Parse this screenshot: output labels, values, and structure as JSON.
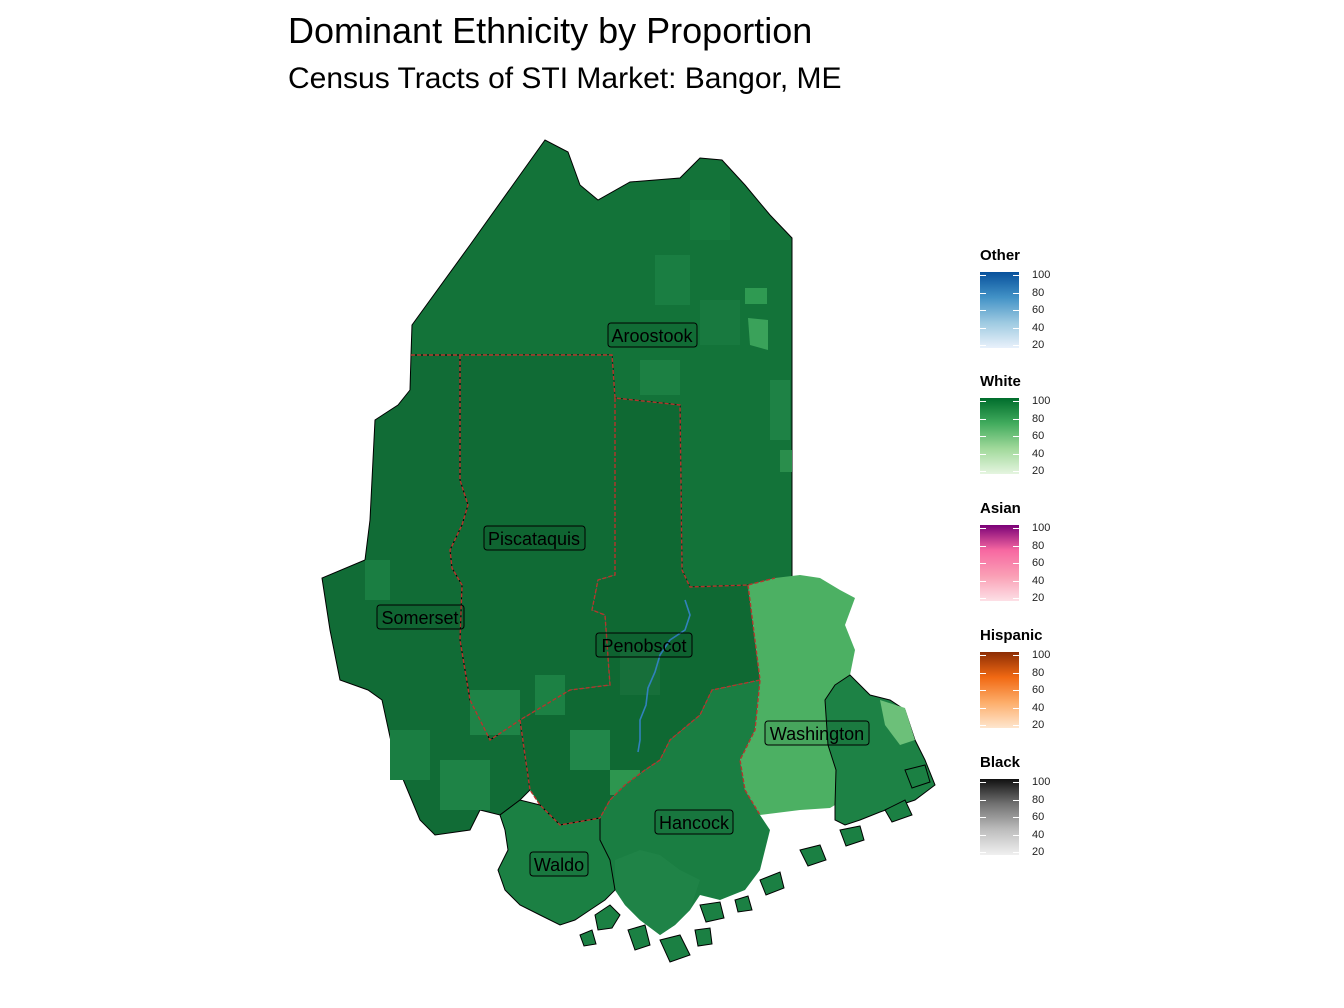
{
  "title": "Dominant Ethnicity by Proportion",
  "subtitle": "Census Tracts of STI Market: Bangor, ME",
  "colors": {
    "white_dominant": "#137339",
    "white_light": "#4cb063",
    "county_border": "#b5352c",
    "river": "#3182bd",
    "coast": "#000000"
  },
  "counties": [
    {
      "name": "Aroostook"
    },
    {
      "name": "Piscataquis"
    },
    {
      "name": "Somerset"
    },
    {
      "name": "Penobscot"
    },
    {
      "name": "Washington"
    },
    {
      "name": "Hancock"
    },
    {
      "name": "Waldo"
    }
  ],
  "legend": [
    {
      "title": "Other",
      "colors": [
        "#e9f1fb",
        "#9ecae1",
        "#4292c6",
        "#08519c"
      ],
      "ticks": [
        "100",
        "80",
        "60",
        "40",
        "20"
      ]
    },
    {
      "title": "White",
      "colors": [
        "#e5f5e0",
        "#a1d99b",
        "#41ab5d",
        "#006d2c"
      ],
      "ticks": [
        "100",
        "80",
        "60",
        "40",
        "20"
      ]
    },
    {
      "title": "Asian",
      "colors": [
        "#fde0e6",
        "#fa9fb5",
        "#f768a1",
        "#7a0177"
      ],
      "ticks": [
        "100",
        "80",
        "60",
        "40",
        "20"
      ]
    },
    {
      "title": "Hispanic",
      "colors": [
        "#fee6ce",
        "#fdae6b",
        "#f16913",
        "#8c2d04"
      ],
      "ticks": [
        "100",
        "80",
        "60",
        "40",
        "20"
      ]
    },
    {
      "title": "Black",
      "colors": [
        "#f0f0f0",
        "#bdbdbd",
        "#737373",
        "#111111"
      ],
      "ticks": [
        "100",
        "80",
        "60",
        "40",
        "20"
      ]
    }
  ]
}
